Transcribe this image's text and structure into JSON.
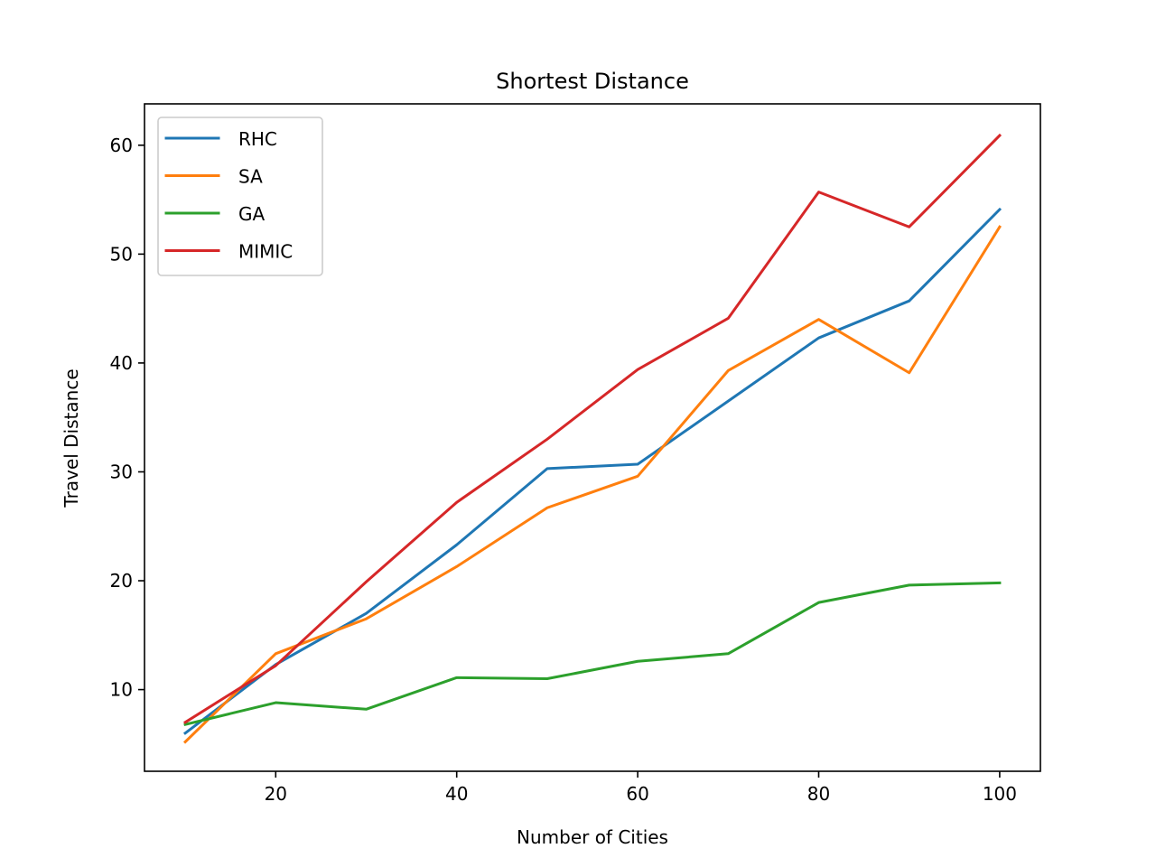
{
  "chart_data": {
    "type": "line",
    "title": "Shortest Distance",
    "xlabel": "Number of Cities",
    "ylabel": "Travel Distance",
    "x": [
      10,
      20,
      30,
      40,
      50,
      60,
      70,
      80,
      90,
      100
    ],
    "xlim": [
      5.5,
      104.5
    ],
    "ylim": [
      2.5,
      63.8
    ],
    "xticks": [
      20,
      40,
      60,
      80,
      100
    ],
    "yticks": [
      10,
      20,
      30,
      40,
      50,
      60
    ],
    "grid": false,
    "legend_position": "upper-left",
    "series": [
      {
        "name": "RHC",
        "color": "#1f77b4",
        "values": [
          6.0,
          12.3,
          17.0,
          23.3,
          30.3,
          30.7,
          36.5,
          42.3,
          45.7,
          54.1
        ]
      },
      {
        "name": "SA",
        "color": "#ff7f0e",
        "values": [
          5.2,
          13.3,
          16.5,
          21.3,
          26.7,
          29.6,
          39.3,
          44.0,
          39.1,
          52.5
        ]
      },
      {
        "name": "GA",
        "color": "#2ca02c",
        "values": [
          6.8,
          8.8,
          8.2,
          11.1,
          11.0,
          12.6,
          13.3,
          18.0,
          19.6,
          19.8
        ]
      },
      {
        "name": "MIMIC",
        "color": "#d62728",
        "values": [
          7.0,
          12.2,
          19.9,
          27.2,
          33.0,
          39.4,
          44.1,
          55.7,
          52.5,
          60.9
        ]
      }
    ]
  }
}
